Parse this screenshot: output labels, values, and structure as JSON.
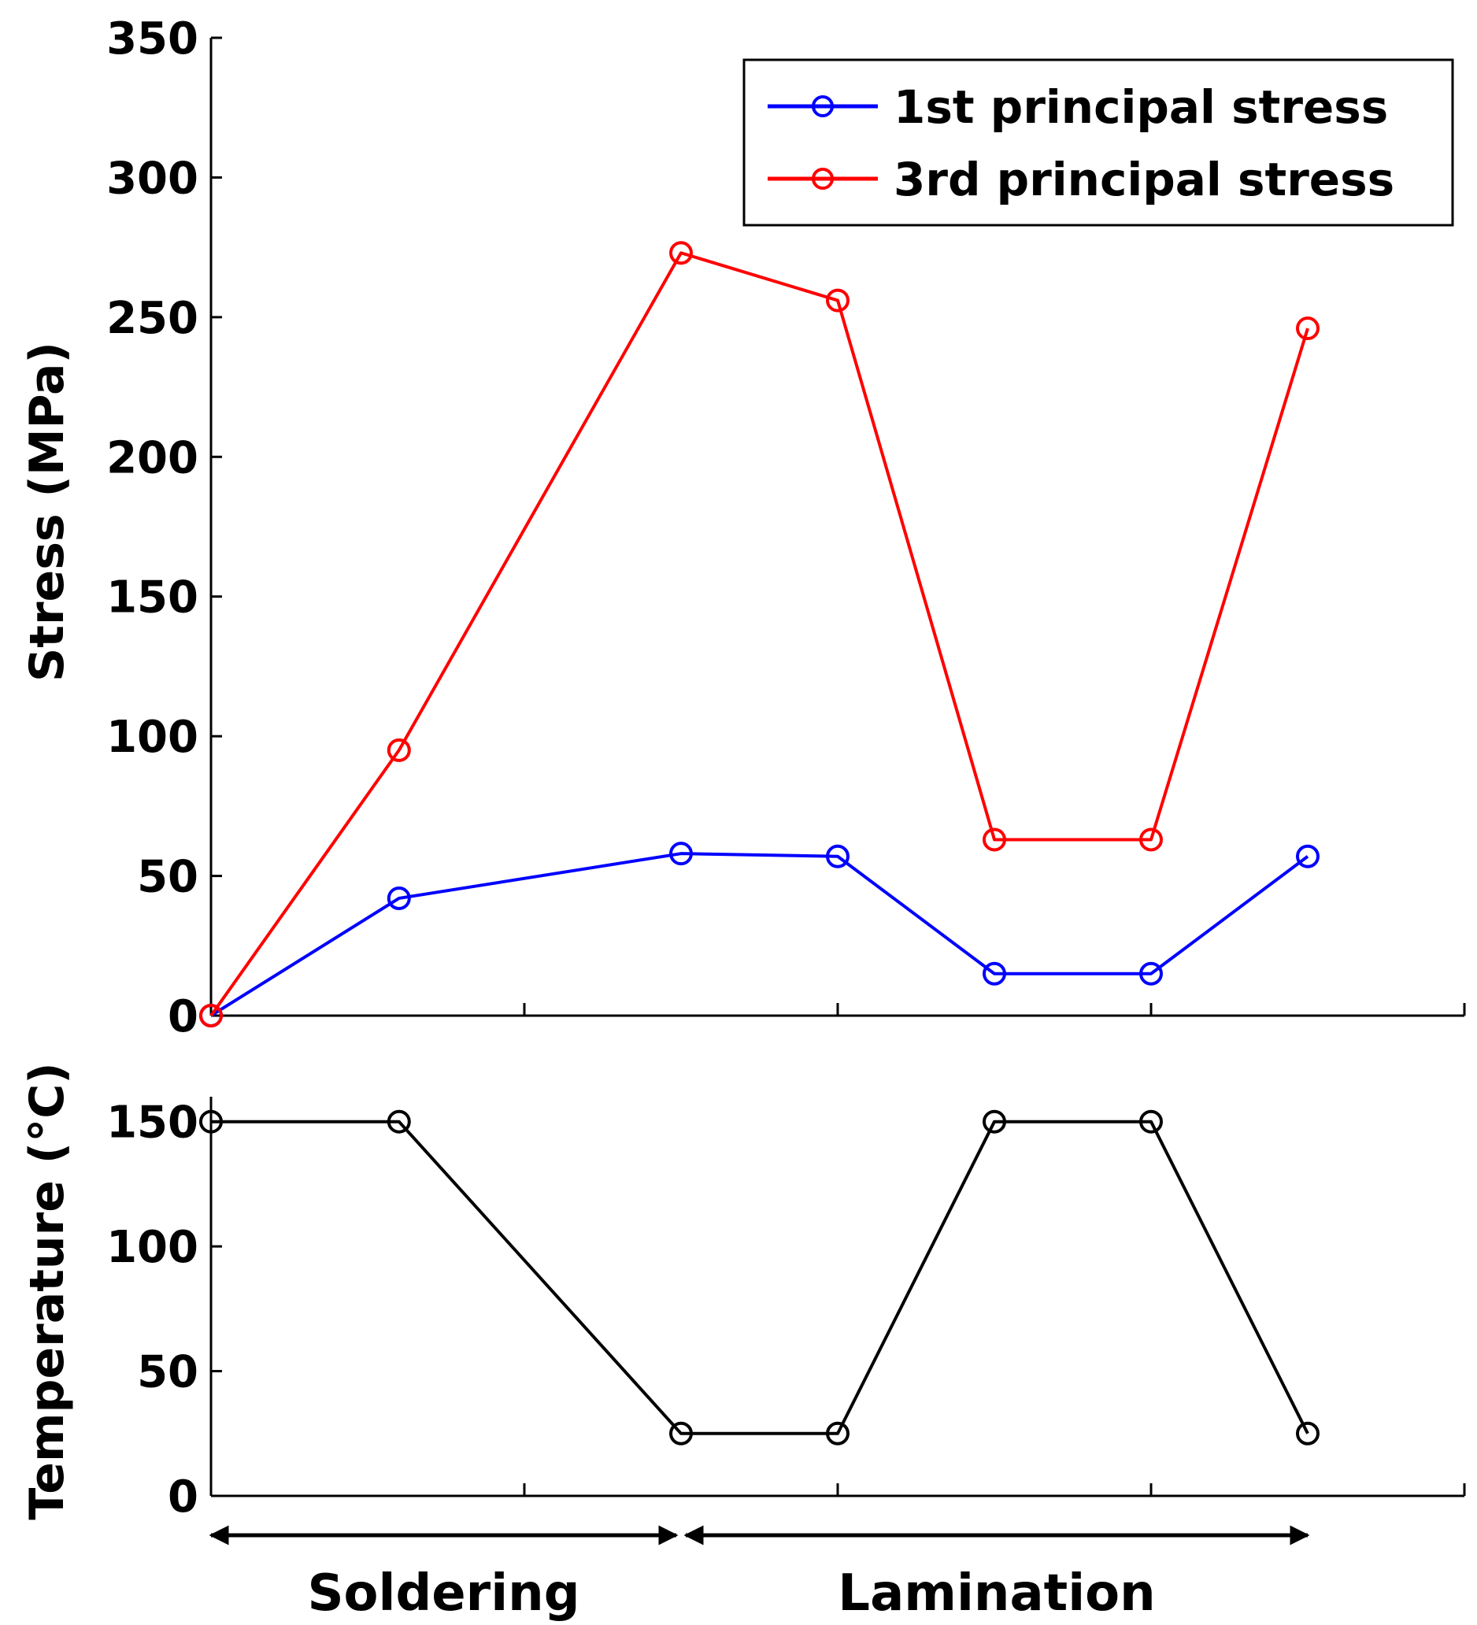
{
  "chart_data": [
    {
      "type": "line",
      "id": "stress",
      "title": "",
      "xlabel": "",
      "ylabel": "Stress (MPa)",
      "ylim": [
        0,
        350
      ],
      "yticks": [
        0,
        50,
        100,
        150,
        200,
        250,
        300,
        350
      ],
      "x": [
        0,
        1.2,
        3,
        4,
        5,
        6,
        7
      ],
      "xlim": [
        0,
        8
      ],
      "series": [
        {
          "name": "1st principal stress",
          "color": "#0000ff",
          "marker": "circle",
          "values": [
            0,
            42,
            58,
            57,
            15,
            15,
            57
          ]
        },
        {
          "name": "3rd principal stress",
          "color": "#ff0000",
          "marker": "circle",
          "values": [
            0,
            95,
            273,
            256,
            63,
            63,
            246
          ]
        }
      ],
      "legend": "top-right"
    },
    {
      "type": "line",
      "id": "temperature",
      "title": "",
      "xlabel": "",
      "ylabel": "Temperature (°C)",
      "ylim": [
        0,
        160
      ],
      "yticks": [
        0,
        50,
        100,
        150
      ],
      "x": [
        0,
        1.2,
        3,
        4,
        5,
        6,
        7
      ],
      "xlim": [
        0,
        8
      ],
      "series": [
        {
          "name": "Temperature",
          "color": "#000000",
          "marker": "circle",
          "values": [
            150,
            150,
            25,
            25,
            150,
            150,
            25
          ]
        }
      ],
      "phases": [
        {
          "label": "Soldering",
          "start": 0,
          "end": 3
        },
        {
          "label": "Lamination",
          "start": 3,
          "end": 7
        }
      ]
    }
  ]
}
